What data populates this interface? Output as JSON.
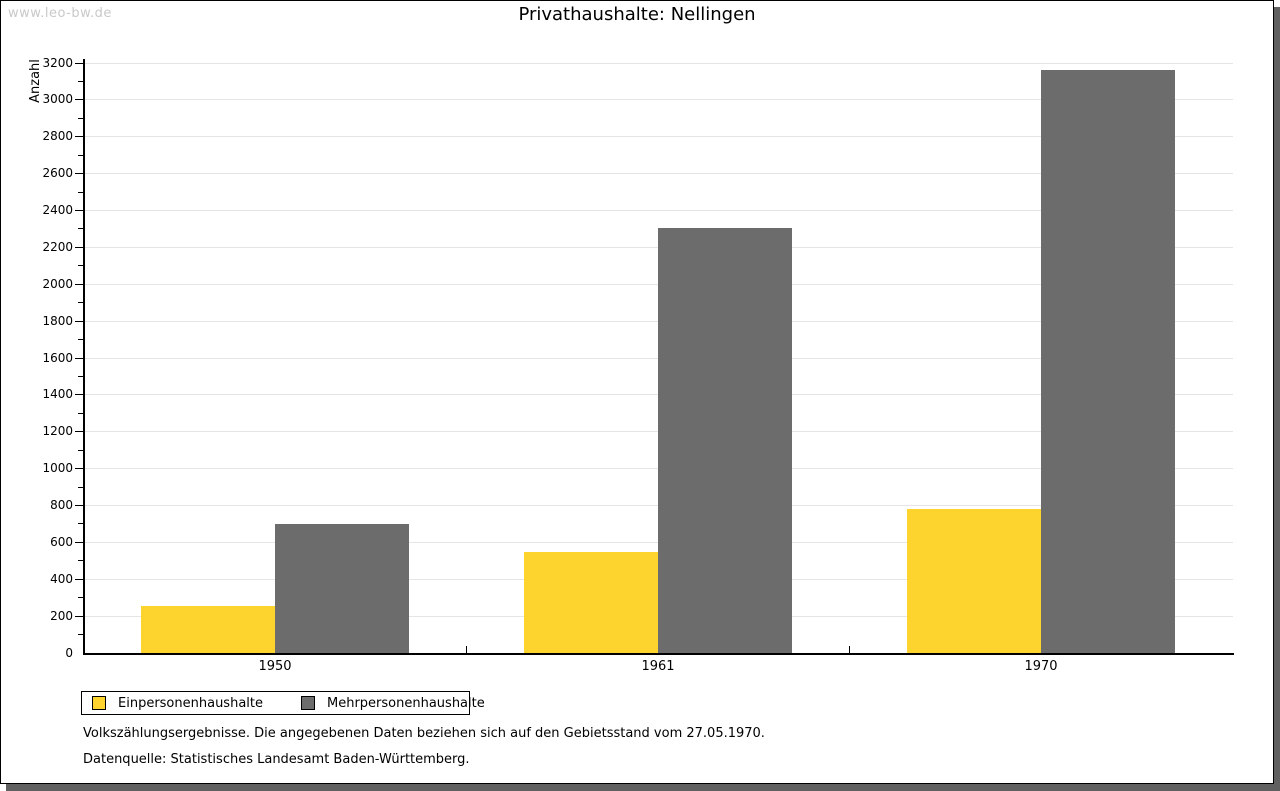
{
  "watermark": "www.leo-bw.de",
  "chart_data": {
    "type": "bar",
    "title": "Privathaushalte: Nellingen",
    "xlabel": "",
    "ylabel": "Anzahl",
    "categories": [
      "1950",
      "1961",
      "1970"
    ],
    "series": [
      {
        "name": "Einpersonenhaushalte",
        "color": "#FCD42D",
        "values": [
          255,
          548,
          781
        ]
      },
      {
        "name": "Mehrpersonenhaushalte",
        "color": "#6C6C6C",
        "values": [
          698,
          2305,
          3162
        ]
      }
    ],
    "ylim": [
      0,
      3200
    ],
    "ytick_major": 200,
    "ytick_minor": 100,
    "grid": "horizontal-major",
    "legend_position": "bottom-left"
  },
  "footnotes": {
    "line1": "Volkszählungsergebnisse. Die angegebenen Daten beziehen sich auf den Gebietsstand vom 27.05.1970.",
    "line2": "Datenquelle: Statistisches Landesamt Baden-Württemberg."
  },
  "colors": {
    "bar_yellow": "#FCD42D",
    "bar_gray": "#6C6C6C",
    "gridline": "#E5E5E5",
    "axis": "#000000",
    "watermark": "#C9C9C9",
    "frame_shadow": "#606060",
    "background": "#FFFFFF"
  }
}
